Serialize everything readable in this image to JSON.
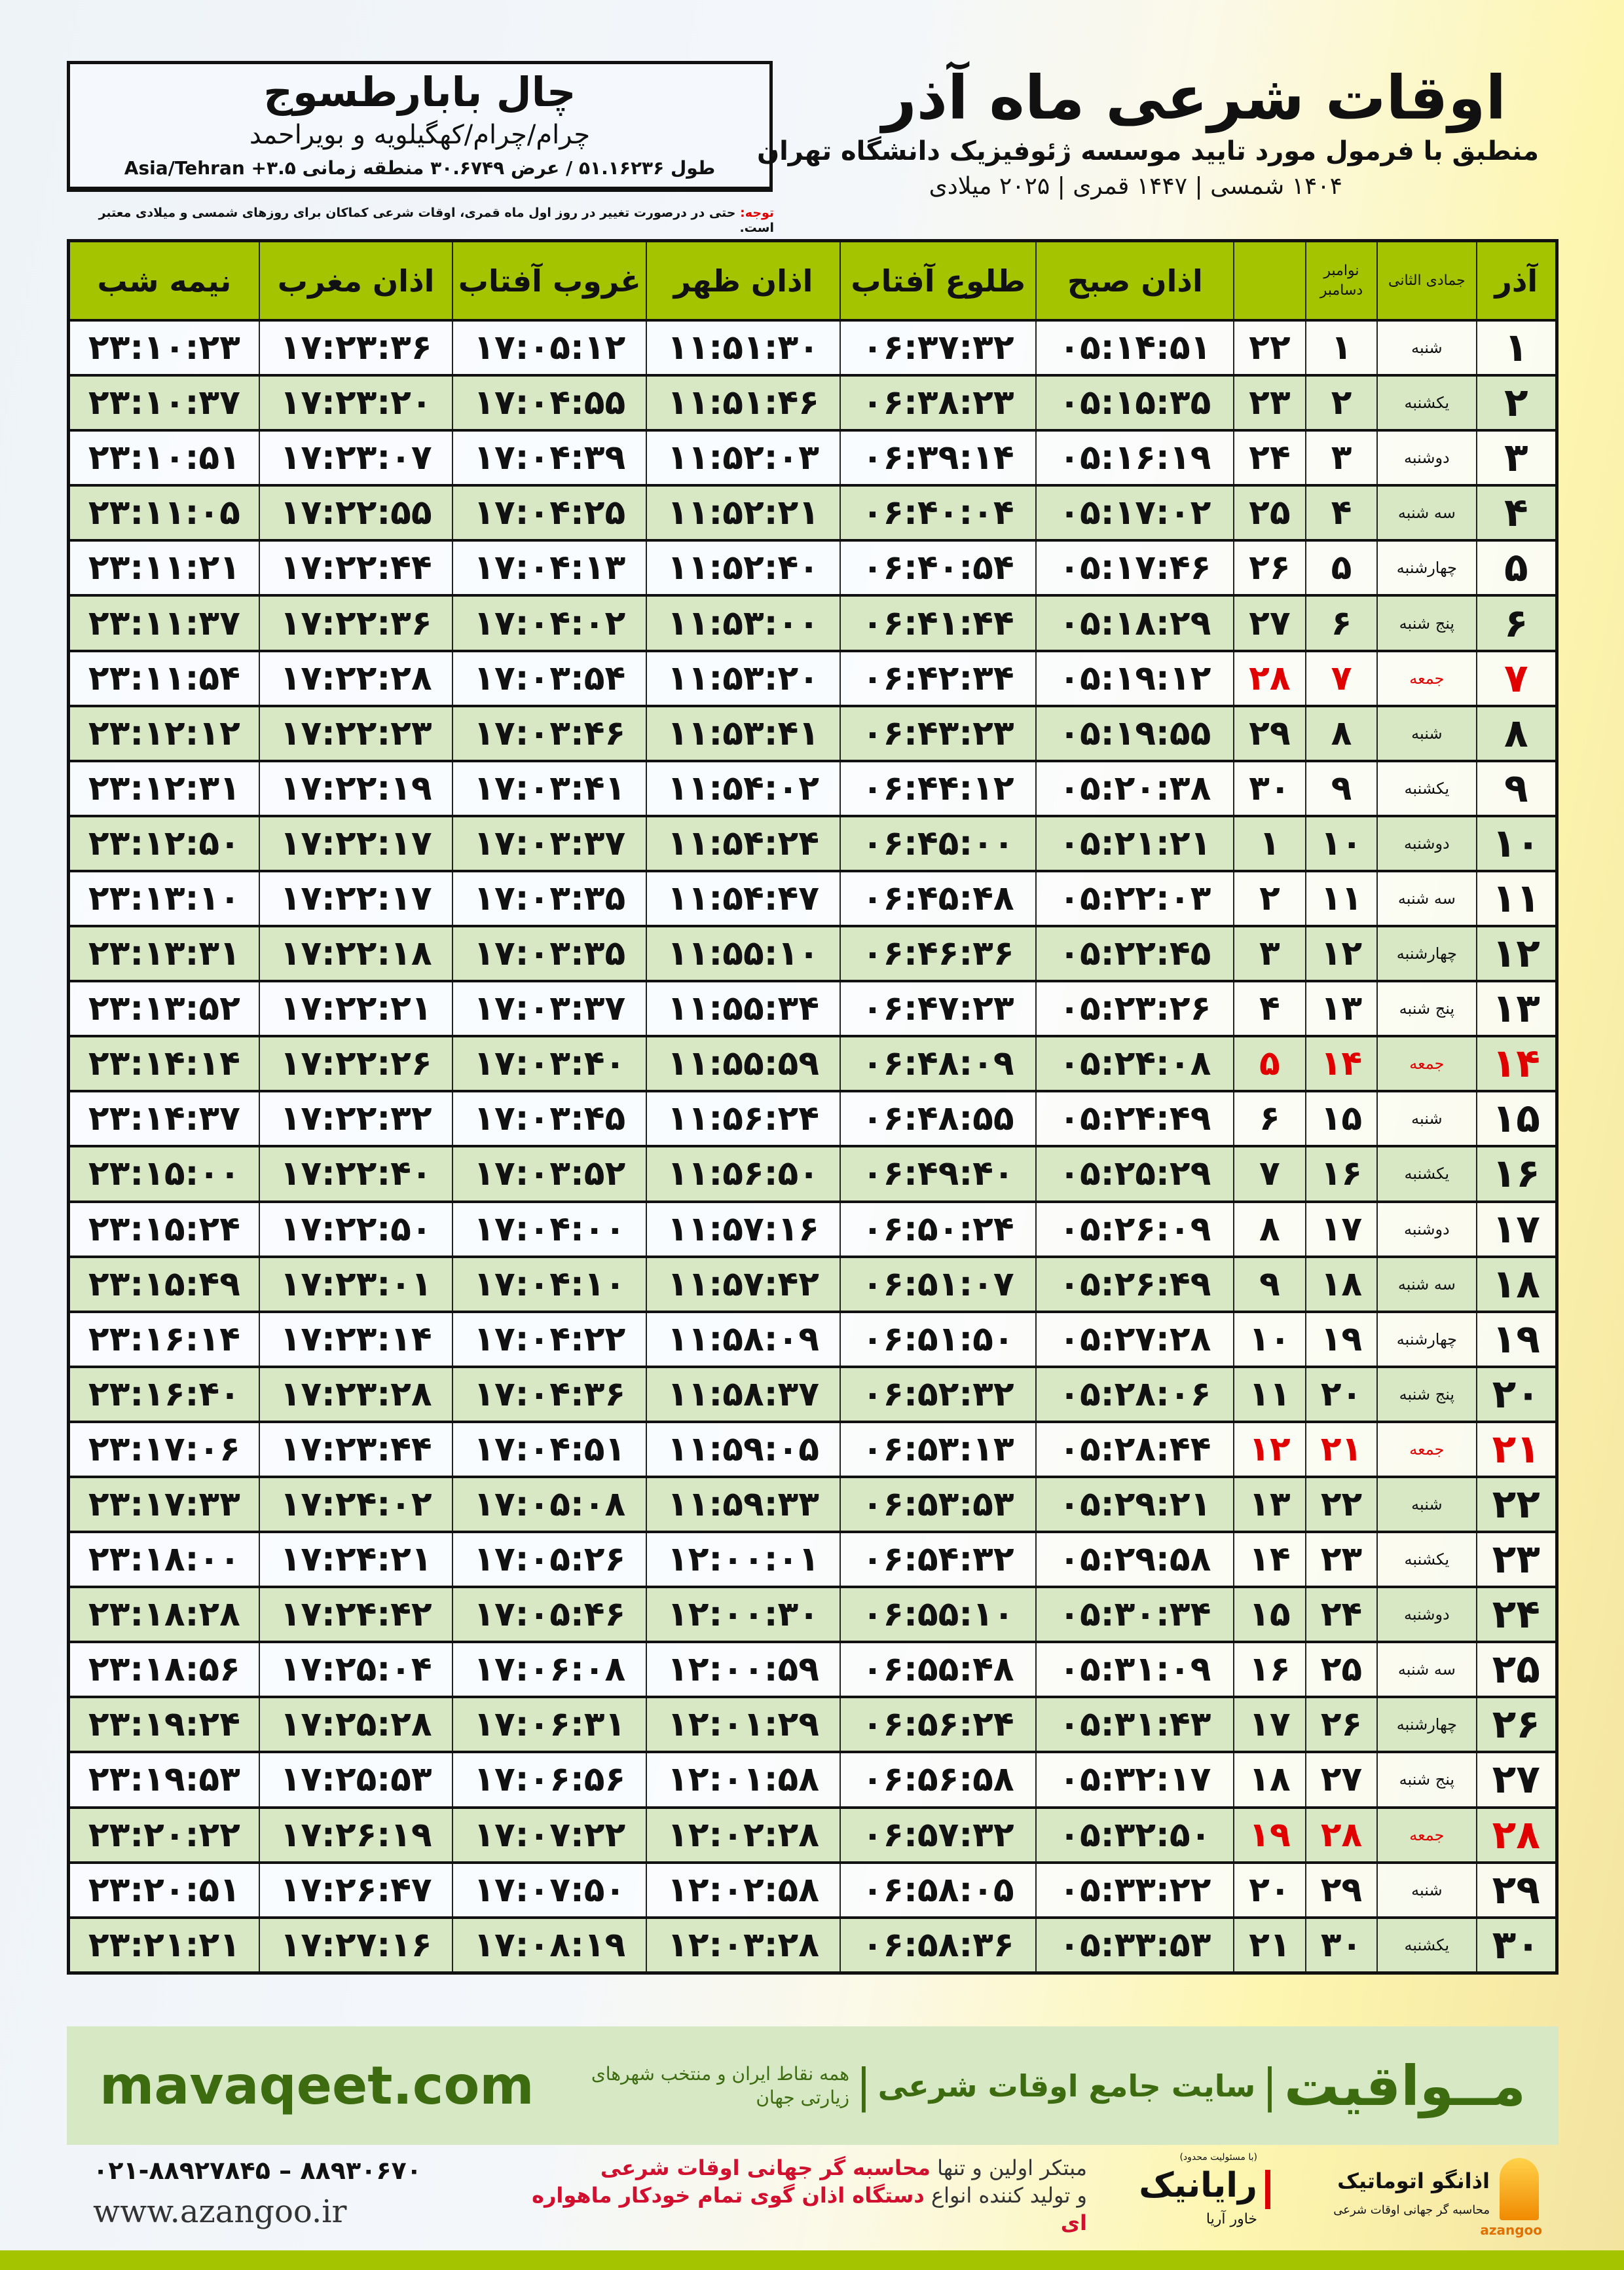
{
  "header": {
    "title": "اوقات شرعی ماه آذر",
    "subtitle": "منطبق با فرمول مورد تایید موسسه ژئوفیزیک دانشگاه تهران",
    "years": "۱۴۰۴ شمسی | ۱۴۴۷ قمری | ۲۰۲۵ میلادی"
  },
  "location": {
    "city": "چال بابارطسوج",
    "province": "چرام/چرام/کهگیلویه و بویراحمد",
    "coords": "طول ۵۱.۱۶۲۳۶ / عرض ۳۰.۶۷۴۹ منطقه زمانی ۳.۵+ Asia/Tehran"
  },
  "note": {
    "label": "توجه:",
    "text": " حتی در درصورت تغییر در روز اول ماه قمری، اوقات شرعی کماکان برای روزهای شمسی و میلادی معتبر است."
  },
  "columns": {
    "azar": "آذر",
    "hijri": "جمادی الثانی",
    "greg_top": "نوامبر",
    "greg_bottom": "دسامبر",
    "fajr": "اذان صبح",
    "sunrise": "طلوع آفتاب",
    "dhuhr": "اذان ظهر",
    "sunset": "غروب آفتاب",
    "maghrib": "اذان مغرب",
    "midnight": "نیمه شب"
  },
  "colors": {
    "header_green": "#a4c400",
    "row_alt": "#d8e8c5",
    "friday_red": "#e00000",
    "brand_green": "#3d6b10"
  },
  "rows": [
    [
      "۱",
      "شنبه",
      "۱",
      "۲۲",
      "۰۵:۱۴:۵۱",
      "۰۶:۳۷:۳۲",
      "۱۱:۵۱:۳۰",
      "۱۷:۰۵:۱۲",
      "۱۷:۲۳:۳۶",
      "۲۳:۱۰:۲۳"
    ],
    [
      "۲",
      "یکشنبه",
      "۲",
      "۲۳",
      "۰۵:۱۵:۳۵",
      "۰۶:۳۸:۲۳",
      "۱۱:۵۱:۴۶",
      "۱۷:۰۴:۵۵",
      "۱۷:۲۳:۲۰",
      "۲۳:۱۰:۳۷"
    ],
    [
      "۳",
      "دوشنبه",
      "۳",
      "۲۴",
      "۰۵:۱۶:۱۹",
      "۰۶:۳۹:۱۴",
      "۱۱:۵۲:۰۳",
      "۱۷:۰۴:۳۹",
      "۱۷:۲۳:۰۷",
      "۲۳:۱۰:۵۱"
    ],
    [
      "۴",
      "سه شنبه",
      "۴",
      "۲۵",
      "۰۵:۱۷:۰۲",
      "۰۶:۴۰:۰۴",
      "۱۱:۵۲:۲۱",
      "۱۷:۰۴:۲۵",
      "۱۷:۲۲:۵۵",
      "۲۳:۱۱:۰۵"
    ],
    [
      "۵",
      "چهارشنبه",
      "۵",
      "۲۶",
      "۰۵:۱۷:۴۶",
      "۰۶:۴۰:۵۴",
      "۱۱:۵۲:۴۰",
      "۱۷:۰۴:۱۳",
      "۱۷:۲۲:۴۴",
      "۲۳:۱۱:۲۱"
    ],
    [
      "۶",
      "پنج شنبه",
      "۶",
      "۲۷",
      "۰۵:۱۸:۲۹",
      "۰۶:۴۱:۴۴",
      "۱۱:۵۳:۰۰",
      "۱۷:۰۴:۰۲",
      "۱۷:۲۲:۳۶",
      "۲۳:۱۱:۳۷"
    ],
    [
      "۷",
      "جمعه",
      "۷",
      "۲۸",
      "۰۵:۱۹:۱۲",
      "۰۶:۴۲:۳۴",
      "۱۱:۵۳:۲۰",
      "۱۷:۰۳:۵۴",
      "۱۷:۲۲:۲۸",
      "۲۳:۱۱:۵۴"
    ],
    [
      "۸",
      "شنبه",
      "۸",
      "۲۹",
      "۰۵:۱۹:۵۵",
      "۰۶:۴۳:۲۳",
      "۱۱:۵۳:۴۱",
      "۱۷:۰۳:۴۶",
      "۱۷:۲۲:۲۳",
      "۲۳:۱۲:۱۲"
    ],
    [
      "۹",
      "یکشنبه",
      "۹",
      "۳۰",
      "۰۵:۲۰:۳۸",
      "۰۶:۴۴:۱۲",
      "۱۱:۵۴:۰۲",
      "۱۷:۰۳:۴۱",
      "۱۷:۲۲:۱۹",
      "۲۳:۱۲:۳۱"
    ],
    [
      "۱۰",
      "دوشنبه",
      "۱۰",
      "۱",
      "۰۵:۲۱:۲۱",
      "۰۶:۴۵:۰۰",
      "۱۱:۵۴:۲۴",
      "۱۷:۰۳:۳۷",
      "۱۷:۲۲:۱۷",
      "۲۳:۱۲:۵۰"
    ],
    [
      "۱۱",
      "سه شنبه",
      "۱۱",
      "۲",
      "۰۵:۲۲:۰۳",
      "۰۶:۴۵:۴۸",
      "۱۱:۵۴:۴۷",
      "۱۷:۰۳:۳۵",
      "۱۷:۲۲:۱۷",
      "۲۳:۱۳:۱۰"
    ],
    [
      "۱۲",
      "چهارشنبه",
      "۱۲",
      "۳",
      "۰۵:۲۲:۴۵",
      "۰۶:۴۶:۳۶",
      "۱۱:۵۵:۱۰",
      "۱۷:۰۳:۳۵",
      "۱۷:۲۲:۱۸",
      "۲۳:۱۳:۳۱"
    ],
    [
      "۱۳",
      "پنج شنبه",
      "۱۳",
      "۴",
      "۰۵:۲۳:۲۶",
      "۰۶:۴۷:۲۳",
      "۱۱:۵۵:۳۴",
      "۱۷:۰۳:۳۷",
      "۱۷:۲۲:۲۱",
      "۲۳:۱۳:۵۲"
    ],
    [
      "۱۴",
      "جمعه",
      "۱۴",
      "۵",
      "۰۵:۲۴:۰۸",
      "۰۶:۴۸:۰۹",
      "۱۱:۵۵:۵۹",
      "۱۷:۰۳:۴۰",
      "۱۷:۲۲:۲۶",
      "۲۳:۱۴:۱۴"
    ],
    [
      "۱۵",
      "شنبه",
      "۱۵",
      "۶",
      "۰۵:۲۴:۴۹",
      "۰۶:۴۸:۵۵",
      "۱۱:۵۶:۲۴",
      "۱۷:۰۳:۴۵",
      "۱۷:۲۲:۳۲",
      "۲۳:۱۴:۳۷"
    ],
    [
      "۱۶",
      "یکشنبه",
      "۱۶",
      "۷",
      "۰۵:۲۵:۲۹",
      "۰۶:۴۹:۴۰",
      "۱۱:۵۶:۵۰",
      "۱۷:۰۳:۵۲",
      "۱۷:۲۲:۴۰",
      "۲۳:۱۵:۰۰"
    ],
    [
      "۱۷",
      "دوشنبه",
      "۱۷",
      "۸",
      "۰۵:۲۶:۰۹",
      "۰۶:۵۰:۲۴",
      "۱۱:۵۷:۱۶",
      "۱۷:۰۴:۰۰",
      "۱۷:۲۲:۵۰",
      "۲۳:۱۵:۲۴"
    ],
    [
      "۱۸",
      "سه شنبه",
      "۱۸",
      "۹",
      "۰۵:۲۶:۴۹",
      "۰۶:۵۱:۰۷",
      "۱۱:۵۷:۴۲",
      "۱۷:۰۴:۱۰",
      "۱۷:۲۳:۰۱",
      "۲۳:۱۵:۴۹"
    ],
    [
      "۱۹",
      "چهارشنبه",
      "۱۹",
      "۱۰",
      "۰۵:۲۷:۲۸",
      "۰۶:۵۱:۵۰",
      "۱۱:۵۸:۰۹",
      "۱۷:۰۴:۲۲",
      "۱۷:۲۳:۱۴",
      "۲۳:۱۶:۱۴"
    ],
    [
      "۲۰",
      "پنج شنبه",
      "۲۰",
      "۱۱",
      "۰۵:۲۸:۰۶",
      "۰۶:۵۲:۳۲",
      "۱۱:۵۸:۳۷",
      "۱۷:۰۴:۳۶",
      "۱۷:۲۳:۲۸",
      "۲۳:۱۶:۴۰"
    ],
    [
      "۲۱",
      "جمعه",
      "۲۱",
      "۱۲",
      "۰۵:۲۸:۴۴",
      "۰۶:۵۳:۱۳",
      "۱۱:۵۹:۰۵",
      "۱۷:۰۴:۵۱",
      "۱۷:۲۳:۴۴",
      "۲۳:۱۷:۰۶"
    ],
    [
      "۲۲",
      "شنبه",
      "۲۲",
      "۱۳",
      "۰۵:۲۹:۲۱",
      "۰۶:۵۳:۵۳",
      "۱۱:۵۹:۳۳",
      "۱۷:۰۵:۰۸",
      "۱۷:۲۴:۰۲",
      "۲۳:۱۷:۳۳"
    ],
    [
      "۲۳",
      "یکشنبه",
      "۲۳",
      "۱۴",
      "۰۵:۲۹:۵۸",
      "۰۶:۵۴:۳۲",
      "۱۲:۰۰:۰۱",
      "۱۷:۰۵:۲۶",
      "۱۷:۲۴:۲۱",
      "۲۳:۱۸:۰۰"
    ],
    [
      "۲۴",
      "دوشنبه",
      "۲۴",
      "۱۵",
      "۰۵:۳۰:۳۴",
      "۰۶:۵۵:۱۰",
      "۱۲:۰۰:۳۰",
      "۱۷:۰۵:۴۶",
      "۱۷:۲۴:۴۲",
      "۲۳:۱۸:۲۸"
    ],
    [
      "۲۵",
      "سه شنبه",
      "۲۵",
      "۱۶",
      "۰۵:۳۱:۰۹",
      "۰۶:۵۵:۴۸",
      "۱۲:۰۰:۵۹",
      "۱۷:۰۶:۰۸",
      "۱۷:۲۵:۰۴",
      "۲۳:۱۸:۵۶"
    ],
    [
      "۲۶",
      "چهارشنبه",
      "۲۶",
      "۱۷",
      "۰۵:۳۱:۴۳",
      "۰۶:۵۶:۲۴",
      "۱۲:۰۱:۲۹",
      "۱۷:۰۶:۳۱",
      "۱۷:۲۵:۲۸",
      "۲۳:۱۹:۲۴"
    ],
    [
      "۲۷",
      "پنج شنبه",
      "۲۷",
      "۱۸",
      "۰۵:۳۲:۱۷",
      "۰۶:۵۶:۵۸",
      "۱۲:۰۱:۵۸",
      "۱۷:۰۶:۵۶",
      "۱۷:۲۵:۵۳",
      "۲۳:۱۹:۵۳"
    ],
    [
      "۲۸",
      "جمعه",
      "۲۸",
      "۱۹",
      "۰۵:۳۲:۵۰",
      "۰۶:۵۷:۳۲",
      "۱۲:۰۲:۲۸",
      "۱۷:۰۷:۲۲",
      "۱۷:۲۶:۱۹",
      "۲۳:۲۰:۲۲"
    ],
    [
      "۲۹",
      "شنبه",
      "۲۹",
      "۲۰",
      "۰۵:۳۳:۲۲",
      "۰۶:۵۸:۰۵",
      "۱۲:۰۲:۵۸",
      "۱۷:۰۷:۵۰",
      "۱۷:۲۶:۴۷",
      "۲۳:۲۰:۵۱"
    ],
    [
      "۳۰",
      "یکشنبه",
      "۳۰",
      "۲۱",
      "۰۵:۳۳:۵۳",
      "۰۶:۵۸:۳۶",
      "۱۲:۰۳:۲۸",
      "۱۷:۰۸:۱۹",
      "۱۷:۲۷:۱۶",
      "۲۳:۲۱:۲۱"
    ]
  ],
  "friday_label": "جمعه",
  "banner": {
    "brand": "مــواقیت",
    "slogan": "سایت جامع اوقات شرعی",
    "sub": "همه نقاط ایران و منتخب شهرهای زیارتی جهان",
    "url": "mavaqeet.com"
  },
  "footer": {
    "line1_plain": "مبتکر اولین و تنها ",
    "line1_red": "محاسبه گر جهانی اوقات شرعی",
    "line2_plain": "و تولید کننده انواع ",
    "line2_red": "دستگاه اذان گوی تمام خودکار ماهواره ای",
    "phone": "۰۲۱-۸۸۹۲۷۸۴۵ – ۸۸۹۳۰۶۷۰",
    "web": "www.azangoo.ir",
    "logo_azangoo": "اذانگو اتوماتیک",
    "logo_azangoo_en": "azangoo",
    "logo_azangoo_tag": "محاسبه گر جهانی اوقات شرعی",
    "logo_rayanik": "رایانیک",
    "logo_rayanik_ltd": "(با مسئولیت محدود)",
    "logo_rayanik_kh": "خاور آریا"
  }
}
